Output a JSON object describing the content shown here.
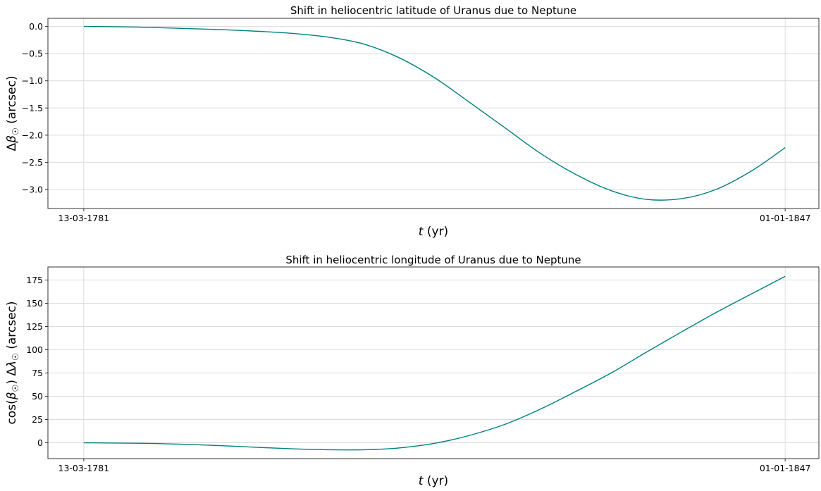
{
  "chart_data": [
    {
      "type": "line",
      "title": "Shift in heliocentric latitude of Uranus due to Neptune",
      "xlabel_var": "t",
      "xlabel_unit": " (yr)",
      "ylabel": "Δβ☉ (arcsec)",
      "ylabel_parts": [
        "Δ",
        "β",
        "☉",
        " (arcsec)"
      ],
      "x_tick_labels": [
        "13-03-1781",
        "01-01-1847"
      ],
      "x_tick_dates": [
        "1781-03-13",
        "1847-01-01"
      ],
      "xlim": [
        "1777-11-01",
        "1850-03-01"
      ],
      "ylim": [
        -3.35,
        0.15
      ],
      "y_ticks": [
        0.0,
        -0.5,
        -1.0,
        -1.5,
        -2.0,
        -2.5,
        -3.0
      ],
      "y_tick_labels": [
        "0.0",
        "−0.5",
        "−1.0",
        "−1.5",
        "−2.0",
        "−2.5",
        "−3.0"
      ],
      "grid": true,
      "color": "#008080",
      "series": [
        {
          "x": [
            "1781-03-13",
            "1784-06-01",
            "1787-11-01",
            "1791-02-01",
            "1794-05-01",
            "1797-09-01",
            "1800-12-01",
            "1804-04-01",
            "1807-08-01",
            "1810-11-01",
            "1814-03-01",
            "1817-06-01",
            "1820-10-01",
            "1824-01-01",
            "1827-05-01",
            "1830-09-01",
            "1833-12-01",
            "1837-04-01",
            "1840-07-01",
            "1843-11-01",
            "1847-01-01"
          ],
          "y": [
            0.0,
            -0.005,
            -0.02,
            -0.04,
            -0.06,
            -0.09,
            -0.13,
            -0.2,
            -0.33,
            -0.58,
            -0.95,
            -1.4,
            -1.87,
            -2.33,
            -2.72,
            -3.02,
            -3.18,
            -3.17,
            -3.0,
            -2.66,
            -2.23
          ]
        }
      ]
    },
    {
      "type": "line",
      "title": "Shift in heliocentric longitude of Uranus due to Neptune",
      "xlabel_var": "t",
      "xlabel_unit": " (yr)",
      "ylabel": "cos(β☉) Δλ☉ (arcsec)",
      "ylabel_parts": [
        "cos(",
        "β",
        "☉",
        ") Δ",
        "λ",
        "☉",
        " (arcsec)"
      ],
      "x_tick_labels": [
        "13-03-1781",
        "01-01-1847"
      ],
      "x_tick_dates": [
        "1781-03-13",
        "1847-01-01"
      ],
      "xlim": [
        "1777-11-01",
        "1850-03-01"
      ],
      "ylim": [
        -17,
        189
      ],
      "y_ticks": [
        0,
        25,
        50,
        75,
        100,
        125,
        150,
        175
      ],
      "y_tick_labels": [
        "0",
        "25",
        "50",
        "75",
        "100",
        "125",
        "150",
        "175"
      ],
      "grid": true,
      "color": "#008080",
      "series": [
        {
          "x": [
            "1781-03-13",
            "1784-06-01",
            "1787-11-01",
            "1791-02-01",
            "1794-05-01",
            "1797-09-01",
            "1800-12-01",
            "1804-04-01",
            "1807-08-01",
            "1810-11-01",
            "1814-03-01",
            "1817-06-01",
            "1820-10-01",
            "1824-01-01",
            "1827-05-01",
            "1830-09-01",
            "1833-12-01",
            "1837-04-01",
            "1840-07-01",
            "1843-11-01",
            "1847-01-01"
          ],
          "y": [
            0,
            -0.3,
            -0.8,
            -1.8,
            -3.2,
            -5.0,
            -6.5,
            -7.5,
            -7.5,
            -5.5,
            -0.5,
            8,
            20,
            36,
            55,
            75,
            97,
            119,
            140,
            160,
            179
          ]
        }
      ]
    }
  ]
}
